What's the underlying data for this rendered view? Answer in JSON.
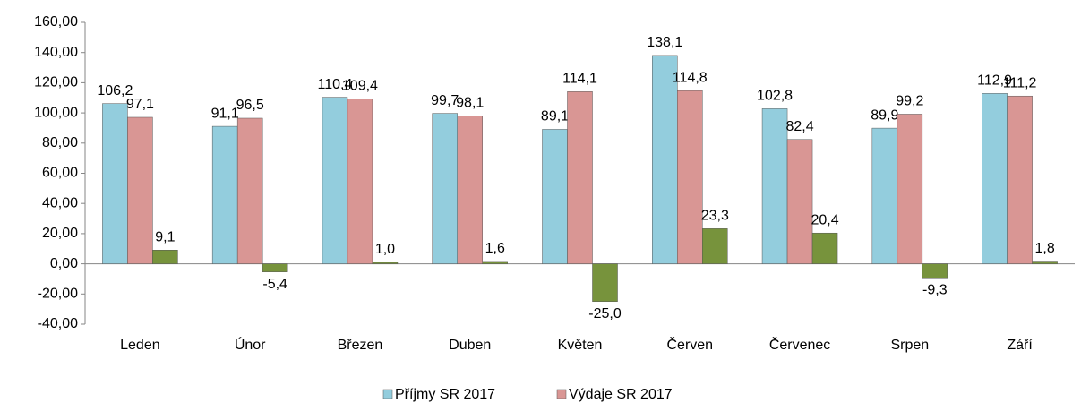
{
  "chart_data": {
    "type": "bar",
    "categories": [
      "Leden",
      "Únor",
      "Březen",
      "Duben",
      "Květen",
      "Červen",
      "Červenec",
      "Srpen",
      "Září"
    ],
    "series": [
      {
        "name": "Příjmy SR 2017",
        "color": "#93cddd",
        "values": [
          106.2,
          91.1,
          110.4,
          99.7,
          89.1,
          138.1,
          102.8,
          89.9,
          112.9
        ],
        "value_labels": [
          "106,2",
          "91,1",
          "110,4",
          "99,7",
          "89,1",
          "138,1",
          "102,8",
          "89,9",
          "112,9"
        ]
      },
      {
        "name": "Výdaje SR 2017",
        "color": "#d99694",
        "values": [
          97.1,
          96.5,
          109.4,
          98.1,
          114.1,
          114.8,
          82.4,
          99.2,
          111.2
        ],
        "value_labels": [
          "97,1",
          "96,5",
          "109,4",
          "98,1",
          "114,1",
          "114,8",
          "82,4",
          "99,2",
          "111,2"
        ]
      },
      {
        "color": "#77933c",
        "values": [
          9.1,
          -5.4,
          1.0,
          1.6,
          -25.0,
          23.3,
          20.4,
          -9.3,
          1.8
        ],
        "value_labels": [
          "9,1",
          "-5,4",
          "1,0",
          "1,6",
          "-25,0",
          "23,3",
          "20,4",
          "-9,3",
          "1,8"
        ]
      }
    ],
    "ylim": [
      -40,
      160
    ],
    "yticks": [
      {
        "value": -40,
        "label": "-40,00"
      },
      {
        "value": -20,
        "label": "-20,00"
      },
      {
        "value": 0,
        "label": "0,00"
      },
      {
        "value": 20,
        "label": "20,00"
      },
      {
        "value": 40,
        "label": "40,00"
      },
      {
        "value": 60,
        "label": "60,00"
      },
      {
        "value": 80,
        "label": "80,00"
      },
      {
        "value": 100,
        "label": "100,00"
      },
      {
        "value": 120,
        "label": "120,00"
      },
      {
        "value": 140,
        "label": "140,00"
      },
      {
        "value": 160,
        "label": "160,00"
      }
    ],
    "grid": false,
    "legend": "bottom"
  }
}
